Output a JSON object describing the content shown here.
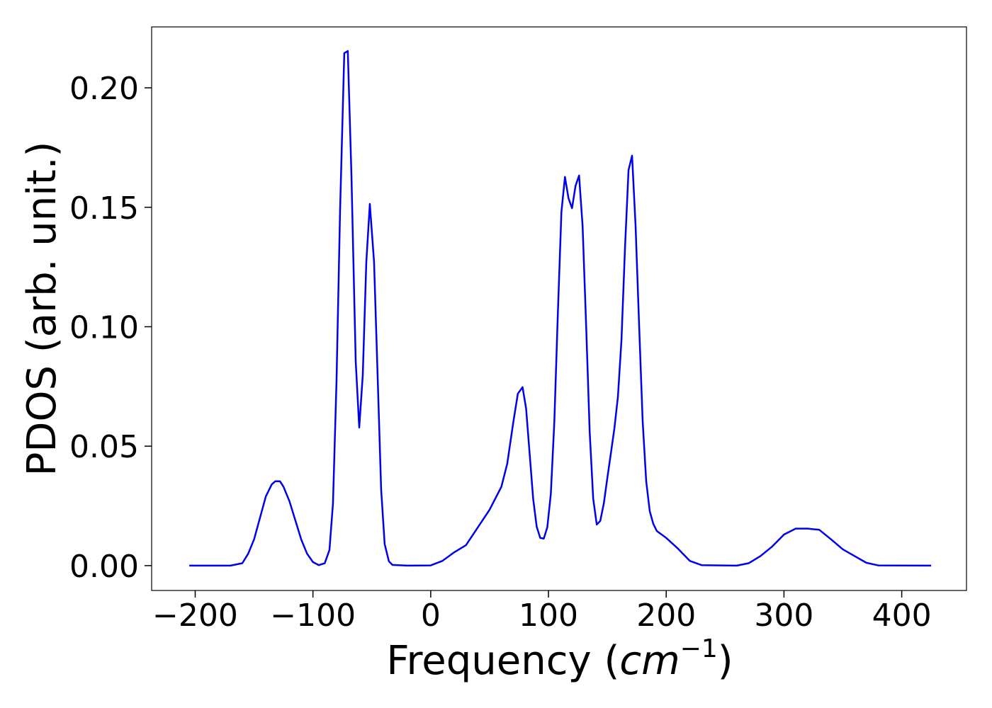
{
  "chart_data": {
    "type": "line",
    "x_label_parts": [
      "Frequency (",
      "cm",
      "−1",
      ")"
    ],
    "y_label": "PDOS (arb. unit.)",
    "xlim": [
      -237,
      455
    ],
    "ylim": [
      -0.0104,
      0.2255
    ],
    "xticks": [
      {
        "value": -200,
        "label": "−200"
      },
      {
        "value": -100,
        "label": "−100"
      },
      0,
      100,
      200,
      300,
      400
    ],
    "yticks": [
      {
        "value": 0,
        "label": "0.00"
      },
      {
        "value": 0.05,
        "label": "0.05"
      },
      {
        "value": 0.1,
        "label": "0.10"
      },
      {
        "value": 0.15,
        "label": "0.15"
      },
      {
        "value": 0.2,
        "label": "0.20"
      }
    ],
    "grid": false,
    "x": [
      -205,
      -170,
      -160,
      -155,
      -150,
      -145,
      -140,
      -135,
      -132,
      -128,
      -125,
      -120,
      -115,
      -110,
      -105,
      -100,
      -95,
      -90,
      -86,
      -83,
      -80,
      -77,
      -73.4,
      -70.4,
      -67.3,
      -63.7,
      -60.7,
      -57.7,
      -54.7,
      -51.7,
      -48.1,
      -45.1,
      -42.1,
      -39.1,
      -35.5,
      -32.5,
      -20,
      0,
      10,
      20,
      30,
      40,
      50,
      60,
      65,
      70,
      74,
      78,
      81,
      84,
      87,
      90,
      93,
      96,
      99,
      102,
      105,
      108,
      111,
      114,
      117,
      120,
      123,
      126,
      129,
      132,
      135,
      138,
      141,
      144,
      147,
      150,
      153,
      156,
      159,
      162,
      165,
      168,
      171,
      174,
      177,
      180,
      183,
      186,
      189,
      192,
      200,
      210,
      220,
      230,
      260,
      270,
      280,
      290,
      300,
      310,
      320,
      330,
      340,
      350,
      360,
      370,
      380,
      425
    ],
    "series": [
      {
        "color": "#0000ee",
        "values": [
          0,
          0,
          0.001,
          0.005,
          0.011,
          0.02,
          0.029,
          0.034,
          0.0353,
          0.0353,
          0.033,
          0.027,
          0.019,
          0.011,
          0.005,
          0.0015,
          0.0002,
          0.001,
          0.0065,
          0.026,
          0.077,
          0.148,
          0.2145,
          0.2154,
          0.163,
          0.0856,
          0.0578,
          0.0797,
          0.127,
          0.1514,
          0.127,
          0.0797,
          0.032,
          0.009,
          0.0018,
          0.0003,
          0,
          0.0001,
          0.002,
          0.0056,
          0.0086,
          0.016,
          0.0234,
          0.033,
          0.0427,
          0.0596,
          0.072,
          0.0747,
          0.0658,
          0.047,
          0.028,
          0.0163,
          0.0116,
          0.0113,
          0.016,
          0.03,
          0.0604,
          0.106,
          0.148,
          0.1627,
          0.1538,
          0.1496,
          0.159,
          0.1633,
          0.142,
          0.1004,
          0.056,
          0.028,
          0.0172,
          0.0187,
          0.026,
          0.0367,
          0.047,
          0.0575,
          0.0708,
          0.0945,
          0.133,
          0.1656,
          0.1716,
          0.142,
          0.1004,
          0.0604,
          0.0353,
          0.0228,
          0.0175,
          0.0145,
          0.0116,
          0.0071,
          0.002,
          0.0002,
          0,
          0.001,
          0.004,
          0.008,
          0.013,
          0.0155,
          0.0155,
          0.015,
          0.011,
          0.0068,
          0.004,
          0.0012,
          0.0001,
          0
        ]
      }
    ]
  }
}
